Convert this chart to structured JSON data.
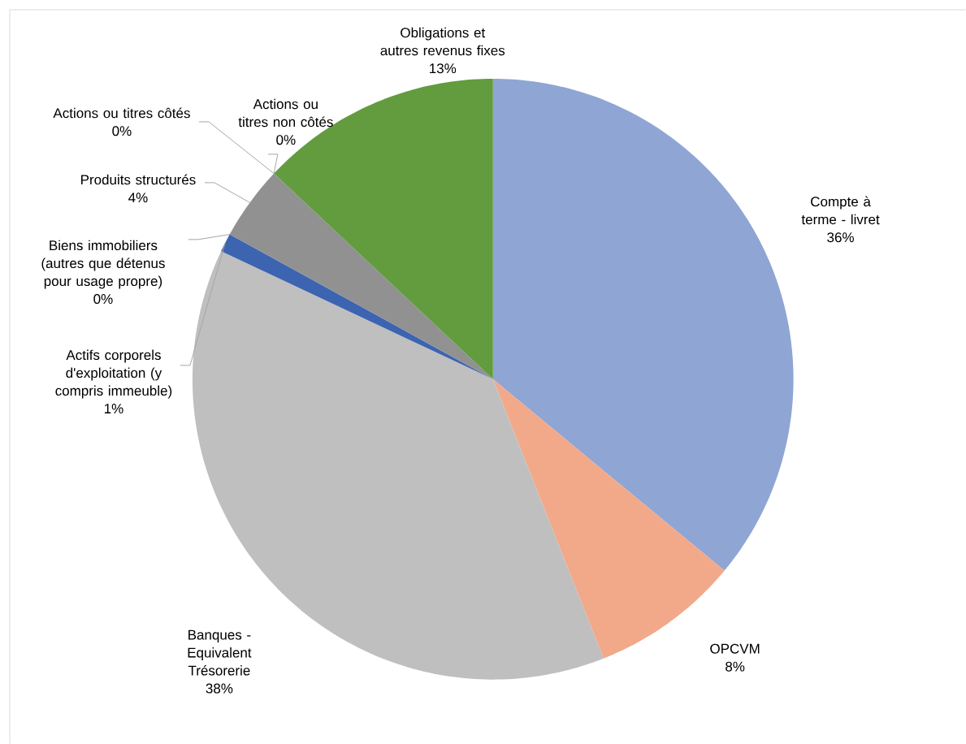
{
  "chart_data": {
    "type": "pie",
    "categories": [
      "Compte à terme - livret",
      "OPCVM",
      "Banques - Equivalent Trésorerie",
      "Actifs corporels d'exploitation (y compris immeuble)",
      "Biens immobiliers (autres que détenus pour usage propre)",
      "Produits structurés",
      "Actions ou titres côtés",
      "Actions ou titres non côtés",
      "Obligations et autres revenus fixes"
    ],
    "values": [
      36,
      8,
      38,
      1,
      0,
      4,
      0,
      0,
      13
    ],
    "value_labels": [
      "36%",
      "8%",
      "38%",
      "1%",
      "0%",
      "4%",
      "0%",
      "0%",
      "13%"
    ],
    "colors": [
      "#8fa5d4",
      "#f1a98a",
      "#bfbfbf",
      "#3c64b0",
      "#e06f25",
      "#919191",
      "#ffc000",
      "#264478",
      "#629c3e"
    ]
  }
}
